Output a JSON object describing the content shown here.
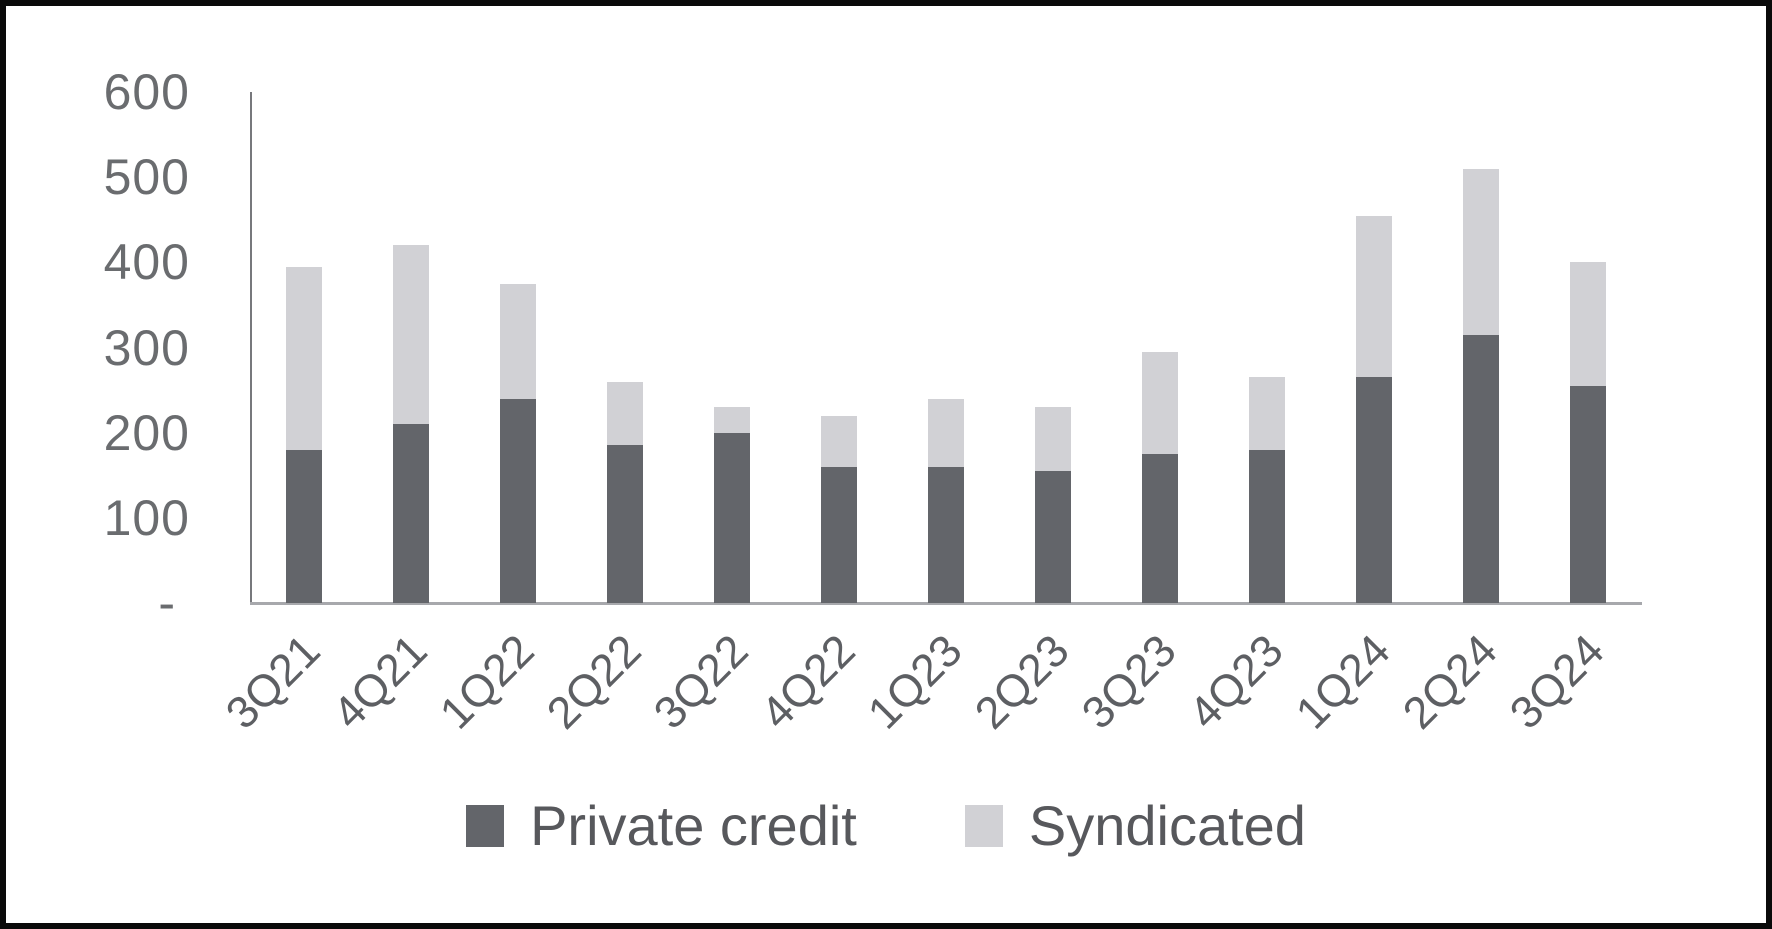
{
  "chart_data": {
    "type": "bar",
    "stacked": true,
    "title": "",
    "xlabel": "",
    "ylabel": "",
    "categories": [
      "3Q21",
      "4Q21",
      "1Q22",
      "2Q22",
      "3Q22",
      "4Q22",
      "1Q23",
      "2Q23",
      "3Q23",
      "4Q23",
      "1Q24",
      "2Q24",
      "3Q24"
    ],
    "series": [
      {
        "name": "Private credit",
        "color": "#63656a",
        "values": [
          180,
          210,
          240,
          185,
          200,
          160,
          160,
          155,
          175,
          180,
          265,
          315,
          255
        ]
      },
      {
        "name": "Syndicated",
        "color": "#d1d1d5",
        "values": [
          215,
          210,
          135,
          75,
          30,
          60,
          80,
          75,
          120,
          85,
          190,
          195,
          145
        ]
      }
    ],
    "totals": [
      395,
      420,
      375,
      260,
      230,
      220,
      240,
      230,
      295,
      265,
      455,
      510,
      400
    ],
    "ylim": [
      0,
      600
    ],
    "yticks": [
      0,
      100,
      200,
      300,
      400,
      500,
      600
    ],
    "ytick_labels": [
      "-",
      "100",
      "200",
      "300",
      "400",
      "500",
      "600"
    ],
    "grid": false,
    "legend_position": "bottom"
  },
  "colors": {
    "background": "#ffffff",
    "frame_border": "#0a0a0a",
    "y_axis_line": "#77787c",
    "x_axis_line": "#a7a8ac",
    "axis_text": "#6a6c6f",
    "category_text": "#5d5f63",
    "legend_text": "#57585c",
    "private_credit_bar": "#63656a",
    "syndicated_bar": "#d1d1d5"
  }
}
